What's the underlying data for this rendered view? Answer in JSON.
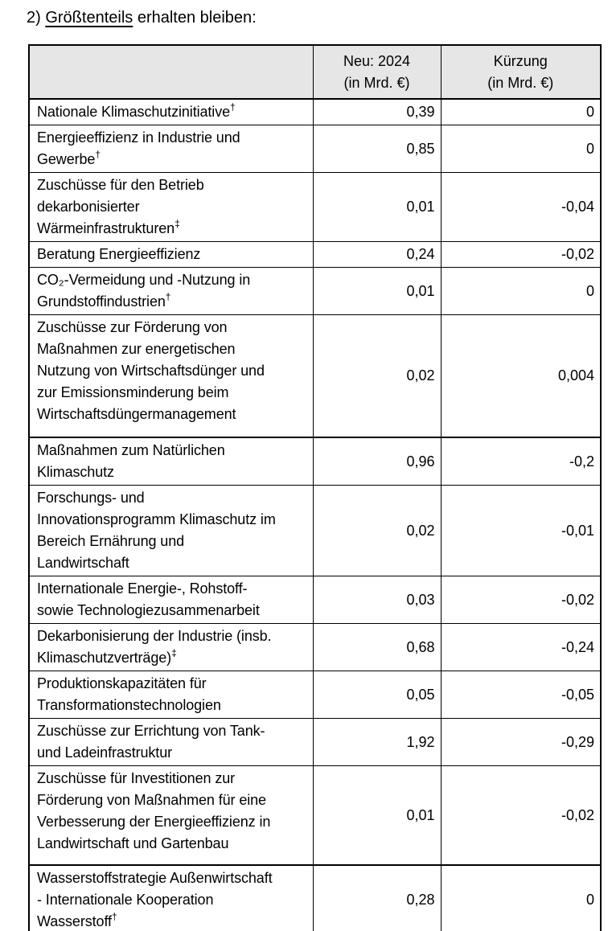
{
  "page": {
    "title": {
      "prefix": "2) ",
      "underlined": "Größtenteils",
      "suffix": " erhalten bleiben:"
    }
  },
  "table": {
    "header": {
      "label_col": "",
      "neu_col": "Neu: 2024\n(in Mrd. €)",
      "kuerzung_col": "Kürzung\n(in Mrd. €)"
    },
    "rows": [
      {
        "label": "Nationale Klimaschutzinitiative",
        "sup": "†",
        "neu": "0,39",
        "kuerzung": "0"
      },
      {
        "label": "Energieeffizienz in Industrie und\nGewerbe",
        "sup": "†",
        "neu": "0,85",
        "kuerzung": "0"
      },
      {
        "label": "Zuschüsse für den Betrieb\ndekarbonisierter\nWärmeinfrastrukturen",
        "sup": "‡",
        "neu": "0,01",
        "kuerzung": "-0,04"
      },
      {
        "label": "Beratung Energieeffizienz",
        "sup": "",
        "neu": "0,24",
        "kuerzung": "-0,02"
      },
      {
        "label": "CO₂-Vermeidung und -Nutzung in\nGrundstoffindustrien",
        "sup": "†",
        "neu": "0,01",
        "kuerzung": "0"
      },
      {
        "label": "Zuschüsse zur Förderung von\nMaßnahmen zur energetischen\nNutzung von Wirtschaftsdünger und\nzur Emissionsminderung beim\nWirtschaftsdüngermanagement",
        "sup": "",
        "neu": "0,02",
        "kuerzung": "0,004"
      },
      {
        "label": "Maßnahmen zum Natürlichen\nKlimaschutz",
        "sup": "",
        "neu": "0,96",
        "kuerzung": "-0,2"
      },
      {
        "label": "Forschungs- und\nInnovationsprogramm Klimaschutz im\nBereich Ernährung und\nLandwirtschaft",
        "sup": "",
        "neu": "0,02",
        "kuerzung": "-0,01"
      },
      {
        "label": "Internationale Energie-, Rohstoff-\nsowie Technologiezusammenarbeit",
        "sup": "",
        "neu": "0,03",
        "kuerzung": "-0,02"
      },
      {
        "label": "Dekarbonisierung der Industrie (insb.\nKlimaschutzverträge)",
        "sup": "‡",
        "neu": "0,68",
        "kuerzung": "-0,24"
      },
      {
        "label": "Produktionskapazitäten für\nTransformationstechnologien",
        "sup": "",
        "neu": "0,05",
        "kuerzung": "-0,05"
      },
      {
        "label": "Zuschüsse zur Errichtung von Tank-\nund Ladeinfrastruktur",
        "sup": "",
        "neu": "1,92",
        "kuerzung": "-0,29"
      },
      {
        "label": "Zuschüsse für Investitionen zur\nFörderung von Maßnahmen für eine\nVerbesserung der Energieeffizienz in\nLandwirtschaft und Gartenbau",
        "sup": "",
        "neu": "0,01",
        "kuerzung": "-0,02"
      },
      {
        "label": "Wasserstoffstrategie Außenwirtschaft\n- Internationale Kooperation\nWasserstoff",
        "sup": "†",
        "neu": "0,28",
        "kuerzung": "0"
      }
    ]
  },
  "colors": {
    "header_bg": "#e6e6e6",
    "border": "#000000",
    "text": "#000000"
  }
}
